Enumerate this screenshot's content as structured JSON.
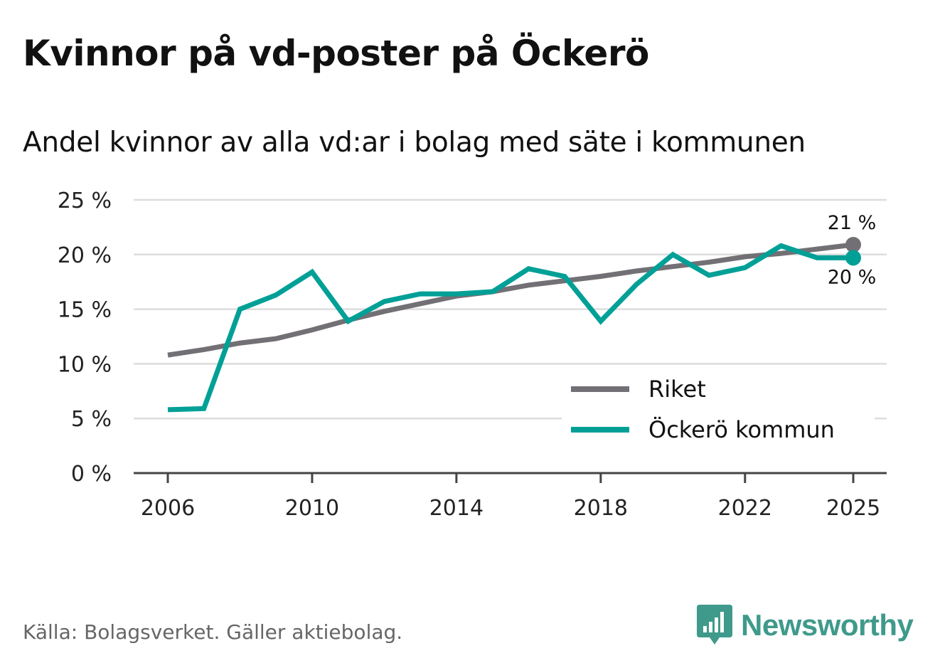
{
  "header": {
    "title": "Kvinnor på vd-poster på Öckerö",
    "subtitle": "Andel kvinnor av alla vd:ar i bolag med säte i kommunen"
  },
  "footer": {
    "source": "Källa: Bolagsverket. Gäller aktiebolag.",
    "brand": "Newsworthy"
  },
  "colors": {
    "riket": "#727075",
    "ockero": "#00a097",
    "grid": "#dddddd",
    "axis": "#444444",
    "brand": "#3f9a8b"
  },
  "chart_data": {
    "type": "line",
    "title": "Kvinnor på vd-poster på Öckerö",
    "subtitle": "Andel kvinnor av alla vd:ar i bolag med säte i kommunen",
    "xlabel": "",
    "ylabel": "",
    "x": [
      2006,
      2007,
      2008,
      2009,
      2010,
      2011,
      2012,
      2013,
      2014,
      2015,
      2016,
      2017,
      2018,
      2019,
      2020,
      2021,
      2022,
      2023,
      2024,
      2025
    ],
    "xlim": [
      2006,
      2025
    ],
    "ylim": [
      0,
      25
    ],
    "x_ticks": [
      2006,
      2010,
      2014,
      2018,
      2022,
      2025
    ],
    "x_tick_labels": [
      "2006",
      "2010",
      "2014",
      "2018",
      "2022",
      "2025"
    ],
    "y_ticks": [
      0,
      5,
      10,
      15,
      20,
      25
    ],
    "y_tick_labels": [
      "0 %",
      "5 %",
      "10 %",
      "15 %",
      "20 %",
      "25 %"
    ],
    "grid": true,
    "legend_position": "bottom-right",
    "series": [
      {
        "name": "Riket",
        "color": "#727075",
        "values": [
          10.8,
          11.3,
          11.9,
          12.3,
          13.1,
          14.0,
          14.8,
          15.5,
          16.2,
          16.6,
          17.2,
          17.6,
          18.0,
          18.5,
          18.9,
          19.3,
          19.8,
          20.1,
          20.5,
          20.9
        ],
        "end_label": "21 %"
      },
      {
        "name": "Öckerö kommun",
        "color": "#00a097",
        "values": [
          5.8,
          5.9,
          15.0,
          16.3,
          18.4,
          13.9,
          15.7,
          16.4,
          16.4,
          16.6,
          18.7,
          18.0,
          13.9,
          17.3,
          20.0,
          18.1,
          18.8,
          20.8,
          19.7,
          19.7
        ],
        "end_label": "20 %"
      }
    ]
  }
}
